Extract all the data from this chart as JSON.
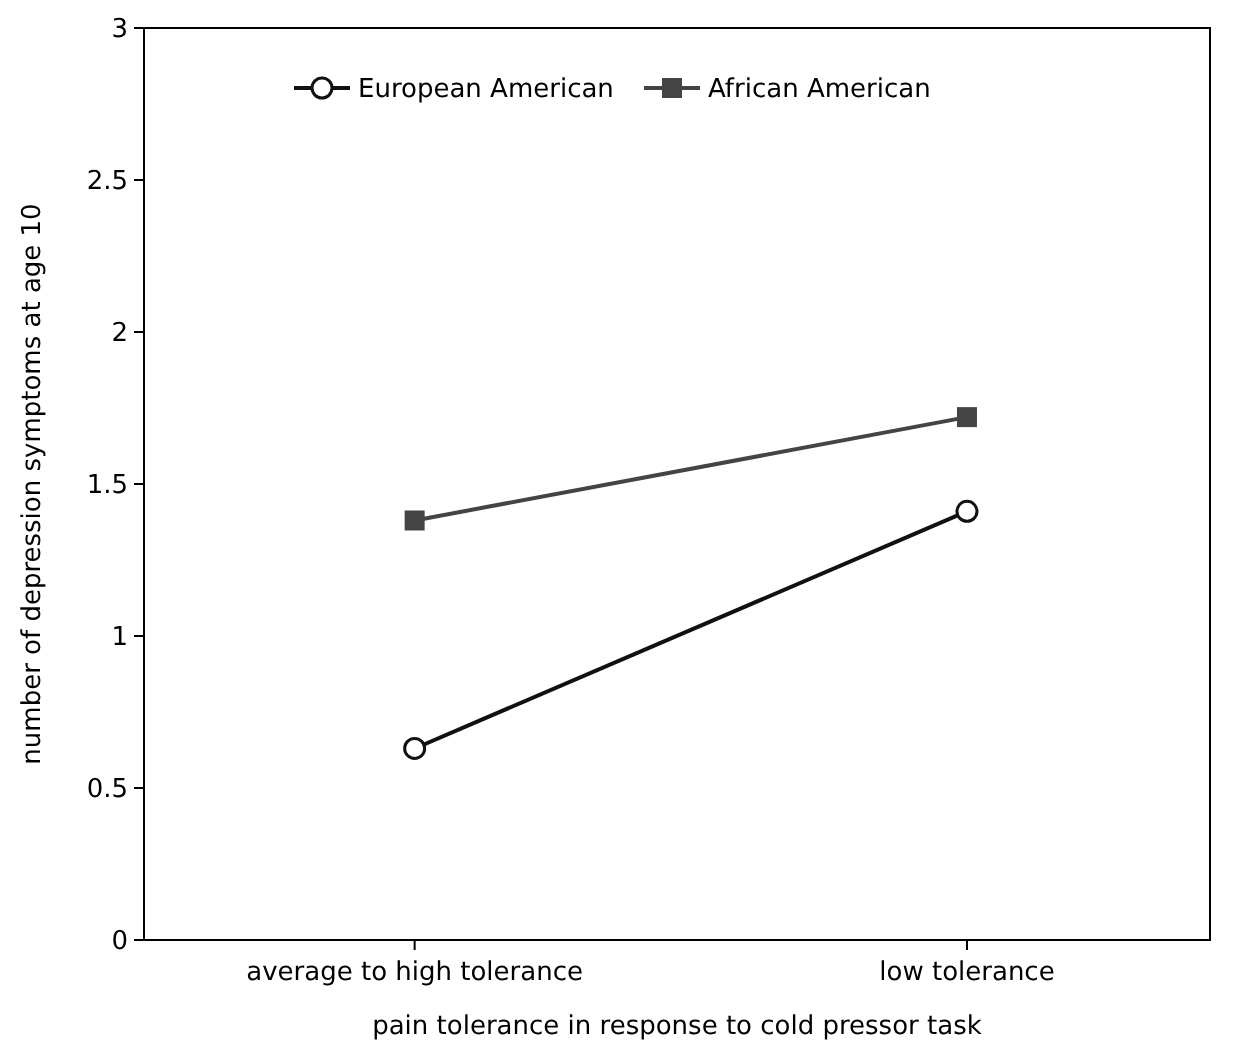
{
  "chart_data": {
    "type": "line",
    "xlabel": "pain tolerance in response to cold pressor task",
    "ylabel": "number of depression symptoms at age 10",
    "categories": [
      "average to high tolerance",
      "low tolerance"
    ],
    "series": [
      {
        "name": "European American",
        "color": "#111111",
        "values": [
          0.63,
          1.41
        ],
        "marker": "circle"
      },
      {
        "name": "African American",
        "color": "#444444",
        "values": [
          1.38,
          1.72
        ],
        "marker": "square"
      }
    ],
    "ylim": [
      0,
      3
    ],
    "yticks": [
      0,
      {
        "value": 0.5,
        "label": "0.5"
      },
      1,
      {
        "value": 1.5,
        "label": "1.5"
      },
      2,
      {
        "value": 2.5,
        "label": "2.5"
      },
      3
    ],
    "grid": false,
    "legend": "top"
  }
}
